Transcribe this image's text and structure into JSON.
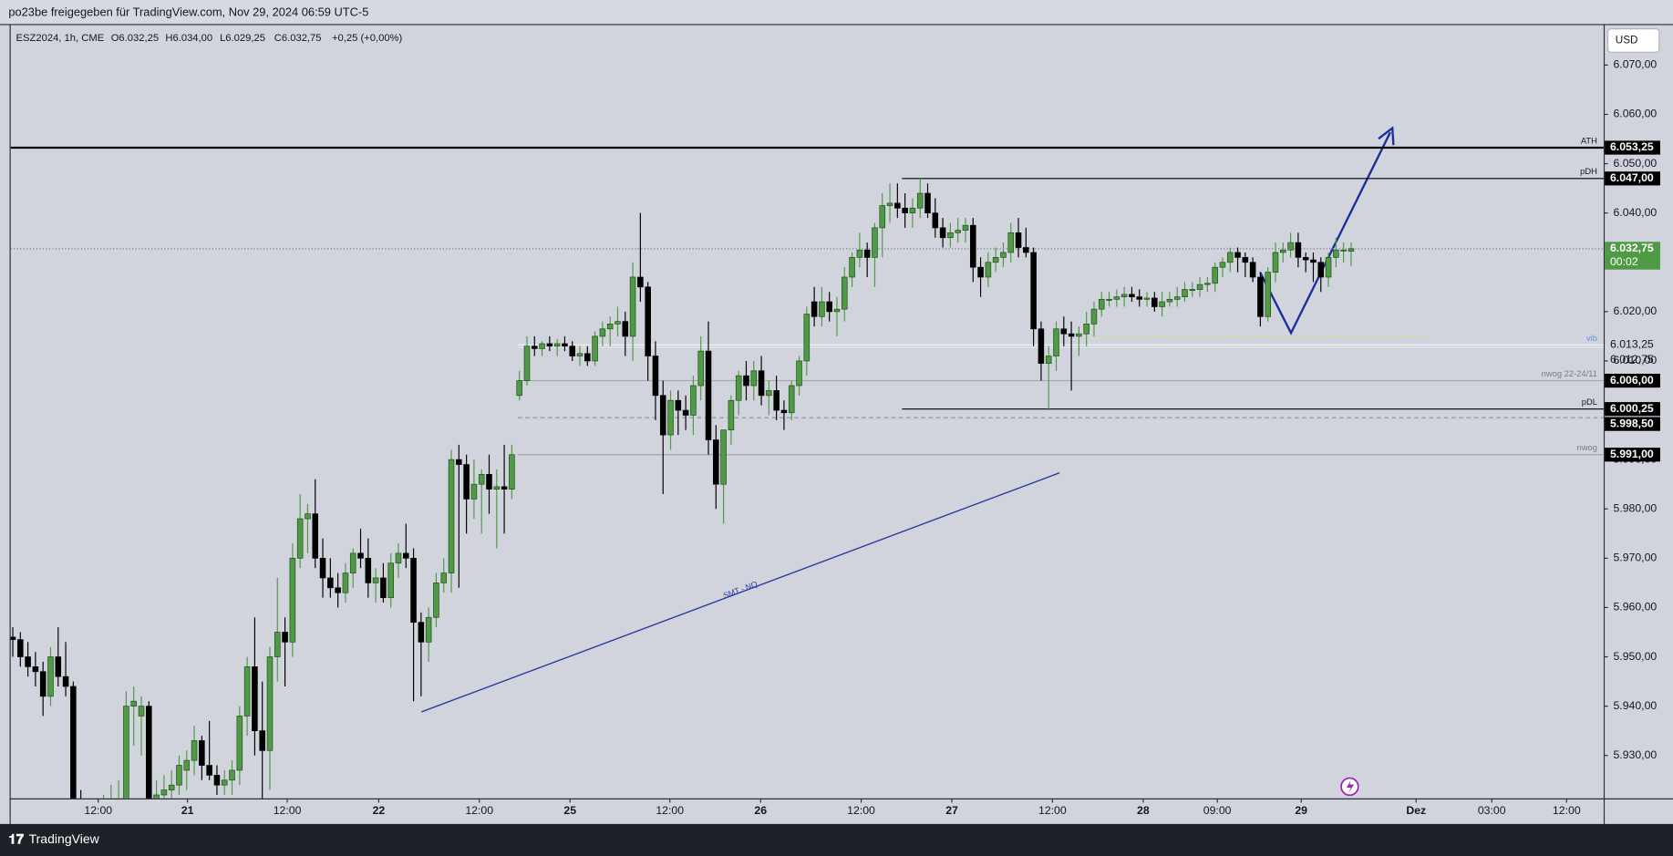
{
  "header": {
    "share": "po23be freigegeben für TradingView.com, Nov 29, 2024 06:59 UTC-5",
    "symbol": "ESZ2024, 1h, CME",
    "ohlc": [
      "O6.032,25",
      "H6.034,00",
      "L6.029,25",
      "C6.032,75"
    ],
    "change": "+0,25 (+0,00%)",
    "currency": "USD",
    "brand": "TradingView"
  },
  "chart_data": {
    "type": "candlestick",
    "x": [
      0,
      1,
      2,
      3,
      4,
      5,
      6,
      7,
      8,
      9,
      10,
      11,
      12,
      13,
      14,
      15,
      16,
      17,
      18,
      19,
      20,
      21,
      22,
      23,
      24,
      25,
      26,
      27,
      28,
      29,
      30,
      31,
      32,
      33,
      34,
      35,
      36,
      37,
      38,
      39,
      40,
      41,
      42,
      43,
      44,
      45,
      46,
      47,
      48,
      49,
      50,
      51,
      52,
      53,
      54,
      55,
      56,
      57,
      58,
      59,
      60,
      61,
      62,
      63,
      64,
      65,
      66,
      67,
      68,
      69,
      70,
      71,
      72,
      73,
      74,
      75,
      76,
      77,
      78,
      79,
      80,
      81,
      82,
      83,
      84,
      85,
      86,
      87,
      88,
      89,
      90,
      91,
      92,
      93,
      94,
      95,
      96,
      97,
      98,
      99,
      100,
      101,
      102,
      103,
      104,
      105,
      106,
      107,
      108,
      109,
      110,
      111,
      112,
      113,
      114,
      115,
      116,
      117,
      118,
      119,
      120,
      121,
      122,
      123,
      124,
      125,
      126,
      127,
      128,
      129,
      130,
      131,
      132,
      133,
      134,
      135,
      136,
      137,
      138,
      139,
      140,
      141,
      142,
      143,
      144,
      145,
      146,
      147,
      148,
      149,
      150,
      151,
      152,
      153,
      154,
      155,
      156,
      157,
      158,
      159,
      160,
      161,
      162,
      163,
      164,
      165,
      166,
      167,
      168,
      169,
      170,
      171,
      172,
      173,
      174,
      175,
      176,
      177
    ],
    "open": [
      5954,
      5953.5,
      5950,
      5948,
      5947,
      5942,
      5950,
      5946,
      5944,
      5919,
      5918,
      5916,
      5917,
      5919,
      5920,
      5921,
      5940,
      5938,
      5940,
      5920,
      5922,
      5923,
      5924,
      5927,
      5929,
      5933,
      5928,
      5926,
      5924,
      5925,
      5927,
      5938,
      5948,
      5935,
      5931,
      5950,
      5955,
      5953,
      5970,
      5978,
      5979,
      5970,
      5966,
      5964,
      5963,
      5967,
      5971,
      5970,
      5965,
      5966,
      5962,
      5969,
      5971,
      5970,
      5957,
      5953,
      5958,
      5965,
      5967,
      5990,
      5989,
      5982,
      5985,
      5987,
      5984,
      5984.5,
      5984,
      6003,
      6006,
      6013,
      6012.5,
      6013.5,
      6013,
      6013.5,
      6013,
      6011,
      6011.5,
      6010,
      6015,
      6016.5,
      6017.5,
      6018,
      6015,
      6027,
      6025,
      6011,
      6003,
      5995,
      6002,
      6000,
      5999,
      6005,
      6012,
      5994,
      5985,
      5996,
      6002,
      6007,
      6005,
      6008,
      6003,
      6004,
      6000,
      5999.5,
      6005,
      6010,
      6022,
      6019,
      6022,
      6020,
      6020.5,
      6027,
      6031,
      6032.5,
      6031,
      6037,
      6041.5,
      6042,
      6041,
      6040,
      6041,
      6044,
      6040,
      6037,
      6035,
      6036,
      6036.5,
      6037.5,
      6029,
      6027,
      6030,
      6031,
      6032,
      6036,
      6033,
      6032,
      6016.5,
      6009.5,
      6011,
      6016.5,
      6015.5,
      6015,
      6015.5,
      6017.5,
      6020.5,
      6022.5,
      6022.5,
      6023,
      6023.5,
      6023,
      6022.5,
      6022.75,
      6021,
      6022,
      6022.5,
      6023,
      6024.5,
      6024.5,
      6025.5,
      6025.75,
      6029,
      6030,
      6032,
      6031,
      6030,
      6027,
      6019,
      6028,
      6032,
      6032.5,
      6034,
      6031,
      6030.5,
      6030,
      6027,
      6031,
      6032.5,
      6032.25
    ],
    "high": [
      5956,
      5955,
      5953,
      5951,
      5949,
      5952,
      5956,
      5953,
      5945,
      5923,
      5921,
      5920,
      5922,
      5924,
      5925,
      5943,
      5944,
      5942,
      5941,
      5925,
      5926,
      5927,
      5930,
      5931,
      5936,
      5934,
      5937,
      5928,
      5927,
      5929,
      5940,
      5950,
      5958,
      5945,
      5952,
      5966,
      5958,
      5973,
      5983,
      5981,
      5986,
      5974,
      5970,
      5967,
      5969,
      5972,
      5976,
      5974,
      5968,
      5969,
      5971,
      5973,
      5977,
      5972,
      5959,
      5960,
      5967,
      5970,
      5992,
      5993,
      5991,
      5990,
      5988,
      5991,
      5988,
      5993,
      5993,
      6008,
      6015,
      6015,
      6014,
      6015,
      6014.5,
      6015,
      6014,
      6013,
      6013,
      6016,
      6018,
      6019,
      6021,
      6020,
      6030,
      6040,
      6026,
      6014,
      6006,
      6004,
      6004,
      6003,
      6007,
      6015,
      6018,
      5997,
      5996,
      6003,
      6008,
      6010,
      6010,
      6011,
      6006,
      6007,
      6002,
      6006,
      6011,
      6021,
      6025,
      6025,
      6024,
      6023,
      6029,
      6032,
      6036,
      6034,
      6038,
      6044,
      6046,
      6046,
      6044,
      6043,
      6047,
      6046,
      6043,
      6039,
      6038,
      6039,
      6039,
      6039,
      6031,
      6032,
      6033,
      6034,
      6038,
      6039,
      6037,
      6033,
      6018,
      6013,
      6018,
      6019,
      6018,
      6017,
      6020,
      6022,
      6024,
      6024,
      6024.5,
      6025,
      6025,
      6024.5,
      6024,
      6024,
      6024,
      6024,
      6025,
      6026,
      6026,
      6027,
      6027,
      6030,
      6031,
      6033,
      6033,
      6032,
      6031,
      6028,
      6029,
      6034,
      6034,
      6036,
      6036,
      6032,
      6032,
      6031,
      6032,
      6035,
      6034,
      6034
    ],
    "low": [
      5950,
      5948,
      5946,
      5944,
      5938,
      5940,
      5944,
      5942,
      5918,
      5915,
      5914,
      5913,
      5914,
      5916,
      5917,
      5919,
      5932,
      5930,
      5918,
      5917,
      5919,
      5920,
      5922,
      5923,
      5926,
      5925,
      5925,
      5922,
      5922,
      5922,
      5924,
      5934,
      5930,
      5921,
      5923,
      5945,
      5944,
      5950,
      5968,
      5971,
      5968,
      5962,
      5962,
      5960,
      5961,
      5964,
      5968,
      5962,
      5961,
      5961,
      5960,
      5966,
      5968,
      5941,
      5942,
      5949,
      5956,
      5963,
      5963,
      5964,
      5975,
      5978,
      5975,
      5979,
      5972,
      5975,
      5982,
      6002,
      6005,
      6011,
      6011,
      6012,
      6011,
      6012,
      6010,
      6009,
      6009,
      6009,
      6013,
      6013,
      6015,
      6011,
      6010,
      6022,
      6006,
      5998,
      5983,
      5992,
      5995,
      5996,
      5995,
      6002,
      5991,
      5980,
      5977,
      5993,
      5999,
      6002,
      6002,
      6001,
      5999,
      5998,
      5996,
      5998,
      6003,
      6007,
      6017,
      6017,
      6018,
      6015,
      6018,
      6025,
      6029,
      6027,
      6025,
      6031,
      6038,
      6039,
      6037,
      6037,
      6039,
      6039,
      6035,
      6033,
      6033,
      6034,
      6034,
      6026,
      6023,
      6025,
      6028,
      6029,
      6030,
      6031,
      6031,
      6013,
      6006,
      6000,
      6008,
      6013,
      6004,
      6011,
      6013,
      6015,
      6019,
      6021,
      6021,
      6021,
      6022,
      6021,
      6021,
      6020,
      6019,
      6021,
      6021,
      6022,
      6023,
      6023,
      6024,
      6024,
      6027,
      6028,
      6028,
      6027,
      6026,
      6017,
      6018,
      6026,
      6030,
      6031,
      6029,
      6028,
      6026,
      6024,
      6025,
      6029,
      6030,
      6029.25
    ],
    "close": [
      5953.5,
      5950,
      5948,
      5947,
      5942,
      5950,
      5946,
      5944,
      5919,
      5918,
      5916,
      5917,
      5919,
      5920,
      5921,
      5940,
      5941,
      5940,
      5920,
      5922,
      5923,
      5924,
      5928,
      5929,
      5933,
      5928,
      5926,
      5924,
      5925,
      5927,
      5938,
      5948,
      5935,
      5931,
      5950,
      5955,
      5953,
      5970,
      5978,
      5979,
      5970,
      5966,
      5964,
      5963,
      5967,
      5971,
      5970,
      5965,
      5966,
      5962,
      5969,
      5971,
      5970,
      5957,
      5953,
      5958,
      5965,
      5967,
      5990,
      5989,
      5982,
      5985,
      5987,
      5984,
      5984.5,
      5984,
      5991,
      6006,
      6013,
      6012.5,
      6013.5,
      6013,
      6013.5,
      6013,
      6011,
      6011.5,
      6010,
      6015,
      6016.5,
      6017.5,
      6018,
      6015,
      6027,
      6025,
      6011,
      6003,
      5995,
      6002,
      6000,
      5999,
      6005,
      6012,
      5994,
      5985,
      5996,
      6002,
      6007,
      6005,
      6008,
      6003,
      6004,
      6000,
      5999.5,
      6005,
      6010,
      6019.5,
      6019,
      6022,
      6020,
      6020.5,
      6027,
      6031,
      6032.5,
      6031,
      6037,
      6041.5,
      6042,
      6041,
      6040,
      6041,
      6044,
      6040,
      6037,
      6035,
      6036,
      6036.5,
      6037.5,
      6029,
      6027,
      6030,
      6031,
      6032,
      6036,
      6033,
      6032,
      6016.5,
      6009.5,
      6011,
      6016.5,
      6015.5,
      6015,
      6015.5,
      6017.5,
      6020.5,
      6022.5,
      6022.5,
      6023,
      6023.5,
      6023,
      6022.5,
      6022.75,
      6021,
      6022,
      6022.5,
      6023,
      6024.5,
      6024.5,
      6025.5,
      6025.75,
      6029,
      6030,
      6032,
      6031,
      6030,
      6027,
      6019,
      6028,
      6032,
      6032.5,
      6034,
      6031,
      6030.5,
      6030,
      6027,
      6031,
      6032.5,
      6032.5,
      6032.75
    ],
    "up_color": "#4f9a44",
    "down_color": "#000000",
    "xlim": [
      -0.28,
      210.4
    ],
    "xticks": [
      {
        "value": 11.3,
        "label": "12:00"
      },
      {
        "value": 23.1,
        "label": "21"
      },
      {
        "value": 36.3,
        "label": "12:00"
      },
      {
        "value": 48.4,
        "label": "22"
      },
      {
        "value": 61.7,
        "label": "12:00"
      },
      {
        "value": 73.7,
        "label": "25"
      },
      {
        "value": 86.9,
        "label": "12:00"
      },
      {
        "value": 98.9,
        "label": "26"
      },
      {
        "value": 112.2,
        "label": "12:00"
      },
      {
        "value": 124.2,
        "label": "27"
      },
      {
        "value": 137.5,
        "label": "12:00"
      },
      {
        "value": 149.5,
        "label": "28"
      },
      {
        "value": 159.3,
        "label": "09:00"
      },
      {
        "value": 170.4,
        "label": "29"
      },
      {
        "value": 185.6,
        "label": "Dez"
      },
      {
        "value": 195.6,
        "label": "03:00"
      },
      {
        "value": 205.5,
        "label": "12:00"
      }
    ],
    "ylim": [
      5921.3,
      6078
    ],
    "yticks": [
      {
        "value": 5930,
        "label": "5.930,00"
      },
      {
        "value": 5940,
        "label": "5.940,00"
      },
      {
        "value": 5950,
        "label": "5.950,00"
      },
      {
        "value": 5960,
        "label": "5.960,00"
      },
      {
        "value": 5970,
        "label": "5.970,00"
      },
      {
        "value": 5980,
        "label": "5.980,00"
      },
      {
        "value": 5990,
        "label": "5.990,00"
      },
      {
        "value": 6000,
        "label": "6.000,00"
      },
      {
        "value": 6010,
        "label": "6.010,00"
      },
      {
        "value": 6020,
        "label": "6.020,00"
      },
      {
        "value": 6030,
        "label": "6.030,00"
      },
      {
        "value": 6040,
        "label": "6.040,00"
      },
      {
        "value": 6050,
        "label": "6.050,00"
      },
      {
        "value": 6060,
        "label": "6.060,00"
      },
      {
        "value": 6070,
        "label": "6.070,00"
      }
    ],
    "grid": false,
    "last_price": {
      "value": 6032.75,
      "label": "6.032,75",
      "countdown": "00:02",
      "color": "#4f9a44"
    },
    "levels": [
      {
        "value": 6053.25,
        "label": "6.053,25",
        "tag": "ATH",
        "start": -0.28,
        "color": "#000000",
        "width": 2,
        "dash": false,
        "boxed": true,
        "tag_color": "#131722"
      },
      {
        "value": 6047,
        "label": "6.047,00",
        "tag": "pDH",
        "start": 117.6,
        "color": "#000000",
        "width": 1,
        "dash": false,
        "boxed": true,
        "tag_color": "#131722"
      },
      {
        "value": 6013.25,
        "label": "6.013,25",
        "tag": "vib",
        "start": 66.8,
        "color": "#eef0f5",
        "width": 1,
        "dash": false,
        "boxed": false,
        "tag_color": "#6b8fe0"
      },
      {
        "value": 6012.75,
        "label": "6.012,75",
        "start": 66.8,
        "color": "#e4e6ec",
        "width": 1,
        "dash": false,
        "boxed": false
      },
      {
        "value": 6006,
        "label": "6.006,00",
        "tag": "nwog 22-24/11",
        "start": 66.8,
        "color": "#a3a6af",
        "width": 1,
        "dash": false,
        "boxed": true,
        "tag_color": "#787b86"
      },
      {
        "value": 6000.25,
        "label": "6.000,25",
        "tag": "pDL",
        "start": 117.6,
        "color": "#000000",
        "width": 1,
        "dash": false,
        "boxed": true,
        "tag_color": "#131722"
      },
      {
        "value": 5998.5,
        "label": "5.998,50",
        "start": 66.8,
        "color": "#8a8d96",
        "width": 1,
        "dash": true,
        "boxed": true
      },
      {
        "value": 5991,
        "label": "5.991,00",
        "tag": "nwog",
        "start": 66.8,
        "color": "#a3a6af",
        "width": 1,
        "dash": false,
        "boxed": true,
        "tag_color": "#787b86"
      }
    ],
    "annotations": [
      "SMT - NQ"
    ]
  }
}
